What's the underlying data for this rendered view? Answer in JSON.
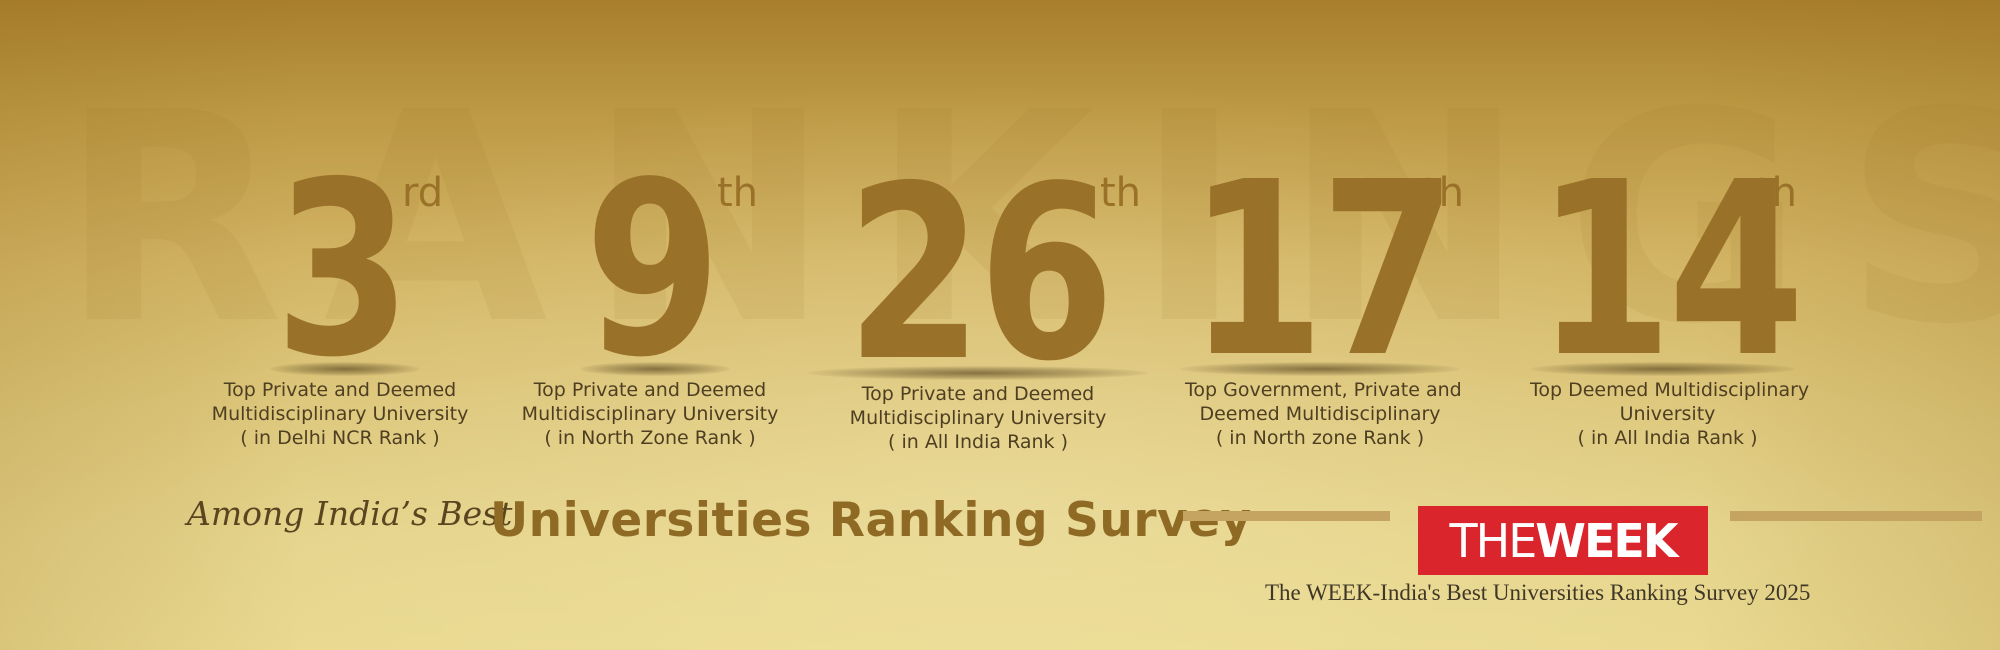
{
  "watermark_text": "RANKINGS",
  "ranks": [
    {
      "number": "3",
      "suffix": "rd",
      "lines": [
        "Top Private and Deemed",
        "Multidisciplinary University",
        "( in Delhi NCR Rank )"
      ]
    },
    {
      "number": "9",
      "suffix": "th",
      "lines": [
        "Top Private and Deemed",
        "Multidisciplinary University",
        "( in North Zone Rank )"
      ]
    },
    {
      "number": "26",
      "suffix": "th",
      "lines": [
        "Top Private and Deemed",
        "Multidisciplinary University",
        "( in All India Rank )"
      ]
    },
    {
      "number": "17",
      "suffix": "th",
      "lines": [
        "Top Government, Private and",
        "Deemed Multidisciplinary",
        "( in North zone Rank )"
      ]
    },
    {
      "number": "14",
      "suffix": "th",
      "lines": [
        "Top Deemed Multidisciplinary",
        "University",
        "( in All India Rank )"
      ]
    }
  ],
  "tagline": {
    "prefix": "Among India’s Best",
    "title": "Universities Ranking Survey"
  },
  "logo": {
    "part1": "THE",
    "part2": "WEEK",
    "background_color": "#d9252b"
  },
  "caption": "The WEEK-India's Best Universities Ranking Survey 2025",
  "colors": {
    "rank_number": "#9a7128",
    "title": "#8f6a25",
    "description": "#4e3f22"
  }
}
